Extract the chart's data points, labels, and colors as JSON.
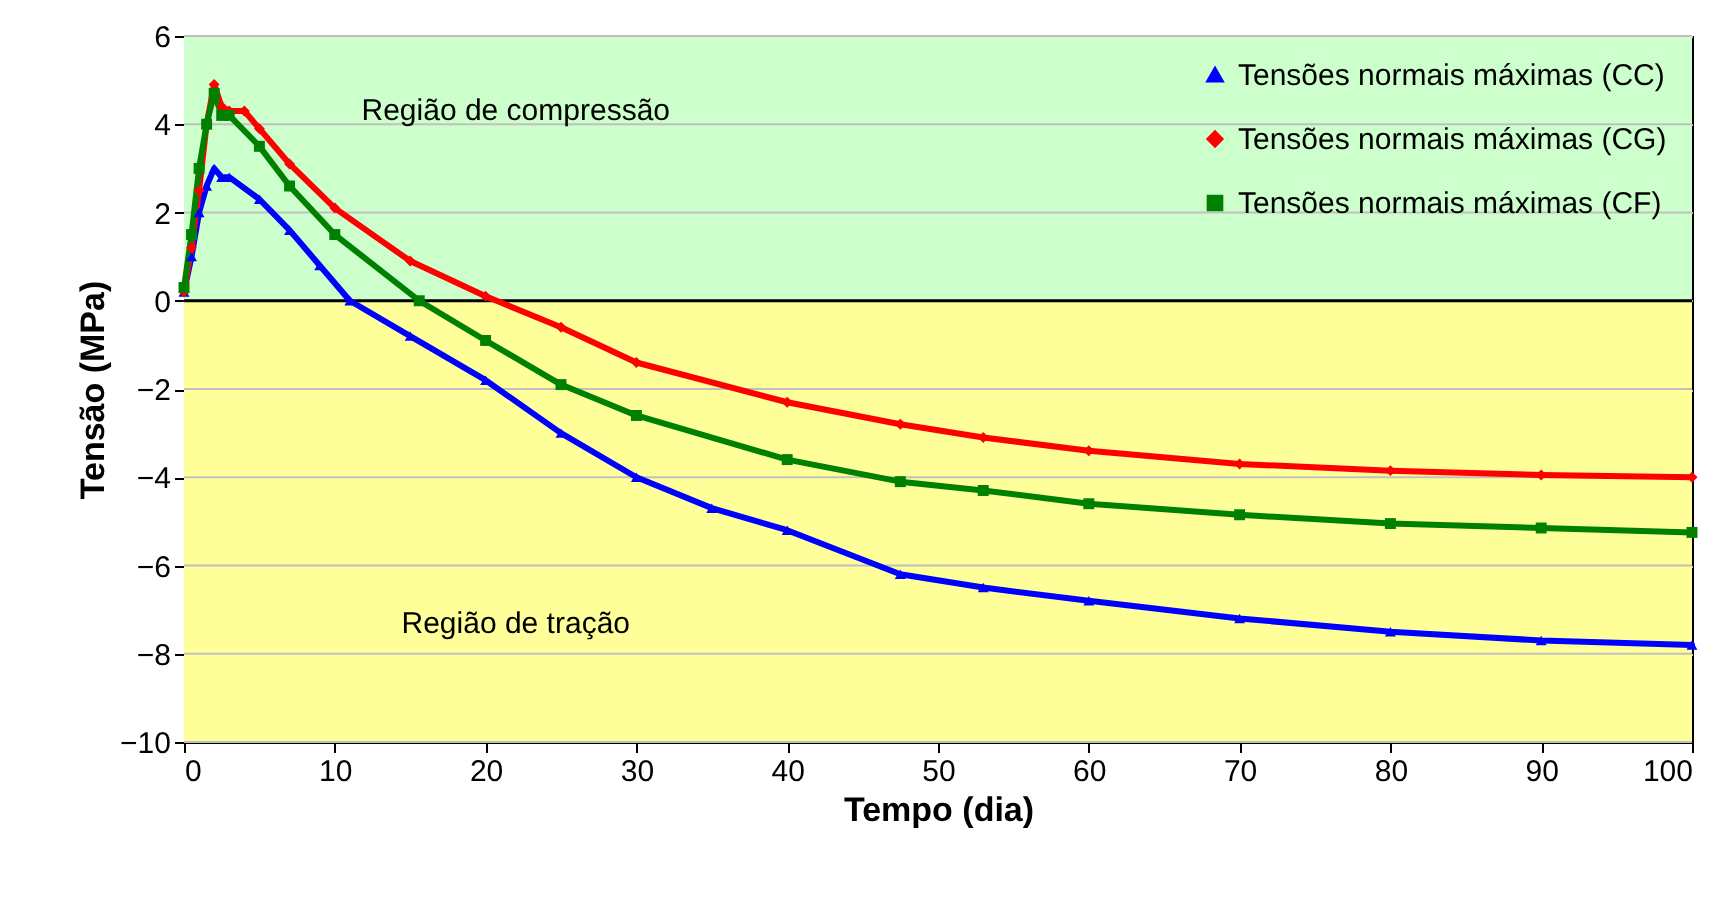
{
  "chart_data": {
    "type": "line",
    "xlabel": "Tempo (dia)",
    "ylabel": "Tensão (MPa)",
    "xlim": [
      0,
      100
    ],
    "xticks": [
      0,
      10,
      20,
      30,
      40,
      50,
      60,
      70,
      80,
      90,
      100
    ],
    "ylim": [
      -10,
      6
    ],
    "yticks": [
      -10,
      -8,
      -6,
      -4,
      -2,
      0,
      2,
      4,
      6
    ],
    "grid": "y",
    "legend": "top right",
    "line_style": "solid",
    "bands": [
      {
        "axis": "y",
        "from": 0,
        "to": 6,
        "label": "Região de compressão",
        "color": "#ccffcc"
      },
      {
        "axis": "y",
        "from": -10,
        "to": 0,
        "label": "Região de tração",
        "color": "#ffff99"
      }
    ],
    "ref_lines": [
      {
        "axis": "y",
        "value": 0,
        "color": "#000000"
      }
    ],
    "series": [
      {
        "name": "Tensões normais máximas (CC)",
        "color": "#0000ff",
        "marker": "triangle",
        "x": [
          0,
          0.5,
          1,
          1.5,
          2,
          2.5,
          3,
          5,
          7,
          9,
          11,
          15,
          20,
          25,
          30,
          35,
          40,
          47.5,
          53,
          60,
          70,
          80,
          90,
          100
        ],
        "values": [
          0.2,
          1.0,
          2.0,
          2.6,
          3.0,
          2.8,
          2.8,
          2.3,
          1.6,
          0.8,
          0,
          -0.8,
          -1.8,
          -3.0,
          -4.0,
          -4.7,
          -5.2,
          -6.2,
          -6.5,
          -6.8,
          -7.2,
          -7.5,
          -7.7,
          -7.8
        ]
      },
      {
        "name": "Tensões normais máximas (CG)",
        "color": "#ff0000",
        "marker": "diamond",
        "x": [
          0,
          0.5,
          1,
          1.5,
          2,
          2.5,
          3,
          4,
          5,
          7,
          10,
          15,
          20,
          25,
          30,
          40,
          47.5,
          53,
          60,
          70,
          80,
          90,
          100
        ],
        "values": [
          0.2,
          1.2,
          2.5,
          4.0,
          4.9,
          4.4,
          4.3,
          4.3,
          3.9,
          3.1,
          2.1,
          0.9,
          0.1,
          -0.6,
          -1.4,
          -2.3,
          -2.8,
          -3.1,
          -3.4,
          -3.7,
          -3.85,
          -3.95,
          -4.0
        ]
      },
      {
        "name": "Tensões normais máximas (CF)",
        "color": "#008000",
        "marker": "square",
        "x": [
          0,
          0.5,
          1,
          1.5,
          2,
          2.5,
          3,
          5,
          7,
          10,
          15.6,
          20,
          25,
          30,
          40,
          47.5,
          53,
          60,
          70,
          80,
          90,
          100
        ],
        "values": [
          0.3,
          1.5,
          3.0,
          4.0,
          4.7,
          4.2,
          4.2,
          3.5,
          2.6,
          1.5,
          0,
          -0.9,
          -1.9,
          -2.6,
          -3.6,
          -4.1,
          -4.3,
          -4.6,
          -4.85,
          -5.05,
          -5.15,
          -5.25
        ]
      }
    ]
  }
}
